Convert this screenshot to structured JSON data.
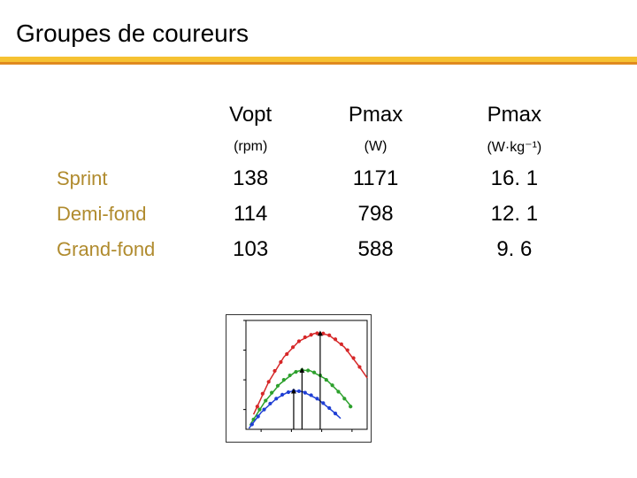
{
  "title": "Groupes de coureurs",
  "underline": {
    "top_color": "#f6c232",
    "bottom_color": "#e08a1f"
  },
  "table": {
    "columns": [
      {
        "main": "Vopt",
        "sub": "(rpm)"
      },
      {
        "main": "Pmax",
        "sub": "(W)"
      },
      {
        "main": "Pmax",
        "sub": "(W·kg⁻¹)"
      }
    ],
    "rows": [
      {
        "label": "Sprint",
        "color": "#b08b2e",
        "values": [
          "138",
          "1171",
          "16. 1"
        ]
      },
      {
        "label": "Demi-fond",
        "color": "#b08b2e",
        "values": [
          "114",
          "798",
          "12. 1"
        ]
      },
      {
        "label": "Grand-fond",
        "color": "#b08b2e",
        "values": [
          "103",
          "588",
          "9. 6"
        ]
      }
    ],
    "label_fontsize": 22,
    "value_fontsize": 24,
    "header_main_fontsize": 24,
    "header_sub_fontsize": 16
  },
  "chart": {
    "type": "scatter-with-curves",
    "width": 165,
    "height": 145,
    "background_color": "#ffffff",
    "border_color": "#333333",
    "axis_color": "#000000",
    "tick_color": "#000000",
    "xlim": [
      40,
      200
    ],
    "ylim": [
      200,
      1300
    ],
    "xticks": [
      60,
      100,
      140,
      180
    ],
    "yticks": [
      400,
      700,
      1000,
      1300
    ],
    "series": [
      {
        "name": "Sprint",
        "color": "#d62728",
        "marker": "circle",
        "marker_size": 3,
        "vopt": 138,
        "pmax": 1171,
        "points": [
          [
            55,
            430
          ],
          [
            62,
            560
          ],
          [
            70,
            680
          ],
          [
            78,
            790
          ],
          [
            86,
            880
          ],
          [
            94,
            960
          ],
          [
            102,
            1030
          ],
          [
            110,
            1090
          ],
          [
            118,
            1130
          ],
          [
            126,
            1155
          ],
          [
            134,
            1170
          ],
          [
            142,
            1168
          ],
          [
            150,
            1150
          ],
          [
            158,
            1110
          ],
          [
            166,
            1060
          ],
          [
            174,
            1000
          ],
          [
            182,
            920
          ],
          [
            190,
            830
          ]
        ],
        "curve": [
          [
            50,
            350
          ],
          [
            70,
            680
          ],
          [
            90,
            930
          ],
          [
            110,
            1090
          ],
          [
            130,
            1168
          ],
          [
            138,
            1171
          ],
          [
            150,
            1150
          ],
          [
            170,
            1030
          ],
          [
            190,
            830
          ],
          [
            200,
            720
          ]
        ]
      },
      {
        "name": "Demi-fond",
        "color": "#2ca02c",
        "marker": "circle",
        "marker_size": 3,
        "vopt": 114,
        "pmax": 798,
        "points": [
          [
            50,
            300
          ],
          [
            58,
            400
          ],
          [
            66,
            490
          ],
          [
            74,
            570
          ],
          [
            82,
            640
          ],
          [
            90,
            700
          ],
          [
            98,
            745
          ],
          [
            106,
            780
          ],
          [
            114,
            798
          ],
          [
            122,
            795
          ],
          [
            130,
            775
          ],
          [
            138,
            745
          ],
          [
            146,
            700
          ],
          [
            154,
            645
          ],
          [
            162,
            580
          ],
          [
            170,
            510
          ],
          [
            178,
            430
          ]
        ],
        "curve": [
          [
            45,
            240
          ],
          [
            65,
            480
          ],
          [
            85,
            660
          ],
          [
            105,
            780
          ],
          [
            114,
            798
          ],
          [
            125,
            792
          ],
          [
            145,
            710
          ],
          [
            165,
            560
          ],
          [
            180,
            420
          ]
        ]
      },
      {
        "name": "Grand-fond",
        "color": "#1f3fd4",
        "marker": "circle",
        "marker_size": 3,
        "vopt": 103,
        "pmax": 588,
        "points": [
          [
            48,
            250
          ],
          [
            56,
            330
          ],
          [
            64,
            400
          ],
          [
            72,
            460
          ],
          [
            80,
            510
          ],
          [
            88,
            550
          ],
          [
            96,
            575
          ],
          [
            103,
            588
          ],
          [
            110,
            585
          ],
          [
            118,
            570
          ],
          [
            126,
            545
          ],
          [
            134,
            510
          ],
          [
            142,
            465
          ],
          [
            150,
            415
          ],
          [
            158,
            360
          ]
        ],
        "curve": [
          [
            44,
            210
          ],
          [
            60,
            370
          ],
          [
            80,
            510
          ],
          [
            95,
            575
          ],
          [
            103,
            588
          ],
          [
            115,
            580
          ],
          [
            135,
            505
          ],
          [
            155,
            380
          ],
          [
            165,
            310
          ]
        ]
      }
    ],
    "arrows": [
      {
        "x": 103,
        "y_to": 588,
        "color": "#000000"
      },
      {
        "x": 114,
        "y_to": 798,
        "color": "#000000"
      },
      {
        "x": 138,
        "y_to": 1171,
        "color": "#000000"
      }
    ]
  }
}
